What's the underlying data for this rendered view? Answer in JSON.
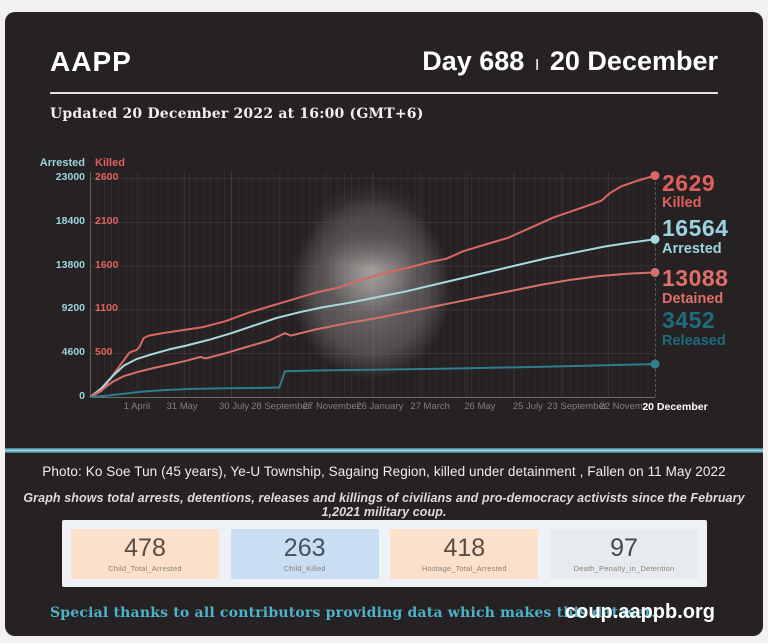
{
  "header": {
    "logo": "AAPP",
    "day": "Day 688",
    "separator": "ı",
    "date": "20 December",
    "updated": "Updated 20 December 2022 at 16:00 (GMT+6)"
  },
  "chart_data": {
    "type": "line",
    "title": "",
    "x_range": "1 February 2021 – 20 December 2022",
    "grid": true,
    "legend_position": "right-of-line-endpoints",
    "left_axis_primary": {
      "label": "Arrested",
      "color": "#9bd4e0",
      "ticks": [
        "23000",
        "18400",
        "13800",
        "9200",
        "4600",
        "0"
      ],
      "max": 23000
    },
    "left_axis_secondary": {
      "label": "Killed",
      "color": "#e05f5c",
      "ticks": [
        "2600",
        "2100",
        "1600",
        "1100",
        "500"
      ],
      "max": 2600
    },
    "x_tick_labels": [
      "1 April",
      "31 May",
      "30 July",
      "28 September",
      "27 November",
      "26 January",
      "27 March",
      "26 May",
      "25 July",
      "23 September",
      "22 Novem",
      "20 December"
    ],
    "series": [
      {
        "name": "Killed",
        "end_value": "2629",
        "axis": "killed",
        "line_color": "#d96763",
        "label_color": "#e0605d",
        "points": [
          [
            0,
            0
          ],
          [
            0.02,
            70
          ],
          [
            0.045,
            300
          ],
          [
            0.07,
            530
          ],
          [
            0.083,
            560
          ],
          [
            0.088,
            600
          ],
          [
            0.095,
            700
          ],
          [
            0.105,
            730
          ],
          [
            0.13,
            760
          ],
          [
            0.17,
            800
          ],
          [
            0.2,
            830
          ],
          [
            0.24,
            900
          ],
          [
            0.28,
            1000
          ],
          [
            0.32,
            1080
          ],
          [
            0.36,
            1160
          ],
          [
            0.4,
            1240
          ],
          [
            0.44,
            1300
          ],
          [
            0.48,
            1390
          ],
          [
            0.52,
            1470
          ],
          [
            0.56,
            1530
          ],
          [
            0.6,
            1600
          ],
          [
            0.63,
            1640
          ],
          [
            0.66,
            1730
          ],
          [
            0.7,
            1810
          ],
          [
            0.74,
            1890
          ],
          [
            0.78,
            2010
          ],
          [
            0.82,
            2130
          ],
          [
            0.85,
            2200
          ],
          [
            0.88,
            2270
          ],
          [
            0.905,
            2330
          ],
          [
            0.92,
            2420
          ],
          [
            0.94,
            2500
          ],
          [
            0.965,
            2560
          ],
          [
            1,
            2629
          ]
        ]
      },
      {
        "name": "Arrested",
        "end_value": "16564",
        "axis": "arrested",
        "line_color": "#a9d9df",
        "label_color": "#9bd4e0",
        "points": [
          [
            0,
            0
          ],
          [
            0.02,
            900
          ],
          [
            0.04,
            2200
          ],
          [
            0.06,
            3300
          ],
          [
            0.083,
            4000
          ],
          [
            0.11,
            4500
          ],
          [
            0.14,
            5000
          ],
          [
            0.17,
            5400
          ],
          [
            0.21,
            6000
          ],
          [
            0.25,
            6700
          ],
          [
            0.29,
            7500
          ],
          [
            0.33,
            8300
          ],
          [
            0.37,
            8900
          ],
          [
            0.41,
            9400
          ],
          [
            0.46,
            9900
          ],
          [
            0.51,
            10500
          ],
          [
            0.56,
            11100
          ],
          [
            0.61,
            11800
          ],
          [
            0.66,
            12500
          ],
          [
            0.71,
            13200
          ],
          [
            0.76,
            13900
          ],
          [
            0.81,
            14600
          ],
          [
            0.86,
            15200
          ],
          [
            0.91,
            15800
          ],
          [
            0.96,
            16250
          ],
          [
            1,
            16564
          ]
        ]
      },
      {
        "name": "Detained",
        "end_value": "13088",
        "axis": "arrested",
        "line_color": "#d4716c",
        "label_color": "#de6f6b",
        "points": [
          [
            0,
            0
          ],
          [
            0.02,
            700
          ],
          [
            0.04,
            1600
          ],
          [
            0.06,
            2200
          ],
          [
            0.083,
            2600
          ],
          [
            0.11,
            3000
          ],
          [
            0.14,
            3400
          ],
          [
            0.17,
            3800
          ],
          [
            0.195,
            4200
          ],
          [
            0.205,
            4050
          ],
          [
            0.24,
            4600
          ],
          [
            0.28,
            5300
          ],
          [
            0.32,
            6000
          ],
          [
            0.345,
            6700
          ],
          [
            0.355,
            6450
          ],
          [
            0.4,
            7100
          ],
          [
            0.45,
            7700
          ],
          [
            0.5,
            8200
          ],
          [
            0.55,
            8800
          ],
          [
            0.6,
            9400
          ],
          [
            0.65,
            10000
          ],
          [
            0.7,
            10600
          ],
          [
            0.75,
            11200
          ],
          [
            0.8,
            11800
          ],
          [
            0.85,
            12300
          ],
          [
            0.9,
            12700
          ],
          [
            0.95,
            12950
          ],
          [
            1,
            13088
          ]
        ]
      },
      {
        "name": "Released",
        "end_value": "3452",
        "axis": "arrested",
        "line_color": "#2e7e8e",
        "label_color": "#1f6b7c",
        "points": [
          [
            0,
            0
          ],
          [
            0.03,
            150
          ],
          [
            0.06,
            350
          ],
          [
            0.09,
            550
          ],
          [
            0.13,
            720
          ],
          [
            0.18,
            850
          ],
          [
            0.24,
            920
          ],
          [
            0.3,
            960
          ],
          [
            0.335,
            1000
          ],
          [
            0.345,
            2700
          ],
          [
            0.4,
            2780
          ],
          [
            0.46,
            2840
          ],
          [
            0.54,
            2900
          ],
          [
            0.62,
            2970
          ],
          [
            0.7,
            3060
          ],
          [
            0.78,
            3150
          ],
          [
            0.86,
            3260
          ],
          [
            0.93,
            3360
          ],
          [
            1,
            3452
          ]
        ]
      }
    ]
  },
  "captions": {
    "photo_caption": "Photo: Ko Soe Tun  (45 years), Ye-U Township, Sagaing Region, killed under detainment , Fallen on 11 May 2022",
    "description": "Graph shows total arrests, detentions, releases and killings of civilians and pro-democracy activists since the February 1,2021 military coup."
  },
  "stats": [
    {
      "value": "478",
      "label": "Child_Total_Arrested",
      "bg": "#fbe0cb",
      "num_color": "#5a4b41"
    },
    {
      "value": "263",
      "label": "Child_Killed",
      "bg": "#c9def2",
      "num_color": "#43525c"
    },
    {
      "value": "418",
      "label": "Hostage_Total_Arrested",
      "bg": "#fbe0cb",
      "num_color": "#5a4b41"
    },
    {
      "value": "97",
      "label": "Death_Penalty_in_Detention",
      "bg": "#e7eaee",
      "num_color": "#474747"
    }
  ],
  "footer": {
    "thanks": "Special thanks to all contributors providing data which makes this dataset.",
    "site": "coup.aappb.org"
  },
  "colors": {
    "background": "#262122",
    "frame": "#f2f1f0",
    "accent_teal": "#9bd4e0",
    "accent_red": "#e05f5c",
    "divider_teal": "#9fd9e4",
    "footer_teal": "#4db3c8"
  }
}
